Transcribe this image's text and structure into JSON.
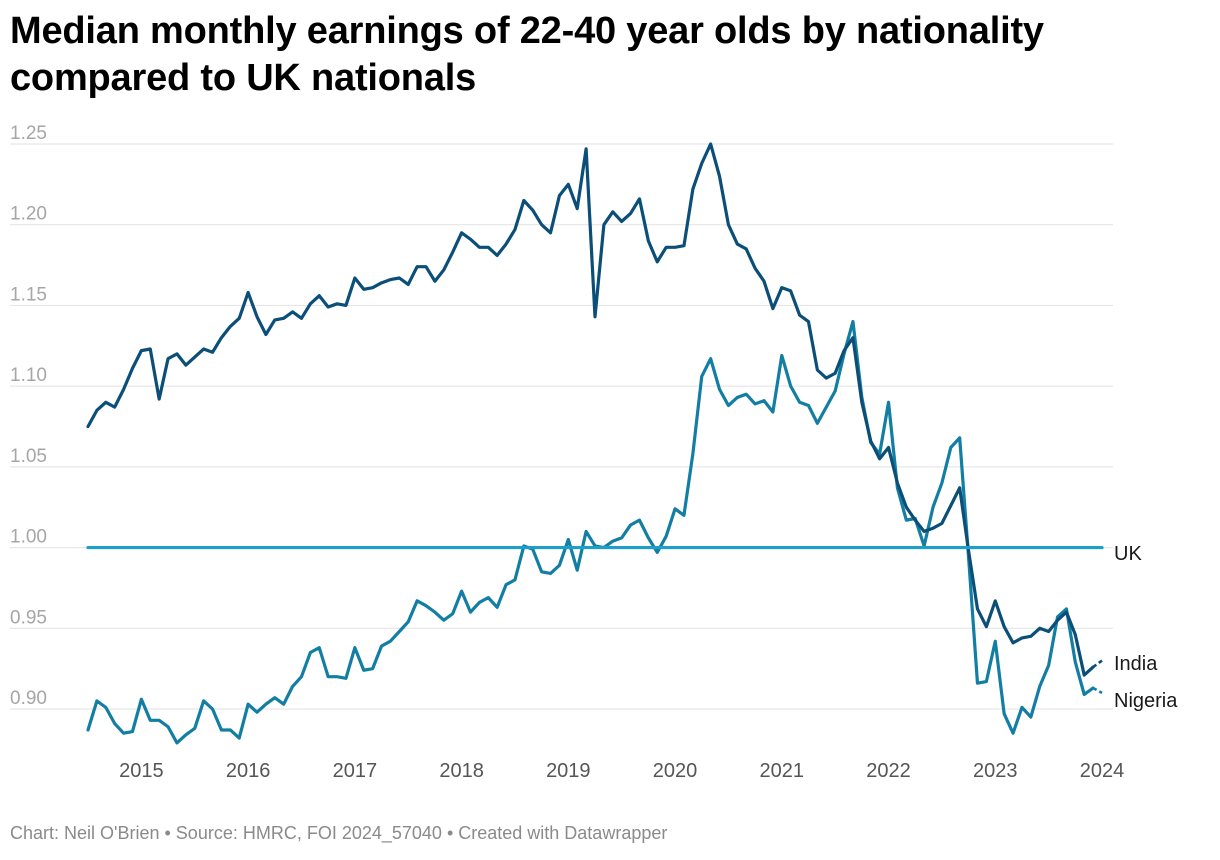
{
  "title": "Median monthly earnings of 22-40 year olds by nationality compared to UK nationals",
  "footer": {
    "chart_by": "Chart: Neil O'Brien",
    "source": "Source: HMRC, FOI 2024_57040",
    "created_with": "Created with Datawrapper",
    "separator": "•"
  },
  "colors": {
    "india": "#0b4f79",
    "nigeria": "#137ea3",
    "uk": "#1d9fcc",
    "grid": "#e2e2e2"
  },
  "chart_data": {
    "type": "line",
    "title": "Median monthly earnings of 22-40 year olds by nationality compared to UK nationals",
    "xlabel": "",
    "ylabel": "",
    "x_ticks": [
      "2015",
      "2016",
      "2017",
      "2018",
      "2019",
      "2020",
      "2021",
      "2022",
      "2023",
      "2024"
    ],
    "y_ticks": [
      "0.90",
      "0.95",
      "1.00",
      "1.05",
      "1.10",
      "1.15",
      "1.20",
      "1.25"
    ],
    "ylim": [
      0.88,
      1.25
    ],
    "grid": true,
    "legend": "direct labels at line ends",
    "series": [
      {
        "name": "India",
        "color": "#0b4f79",
        "points": [
          [
            "2014-07",
            1.075
          ],
          [
            "2014-08",
            1.085
          ],
          [
            "2014-09",
            1.09
          ],
          [
            "2014-10",
            1.087
          ],
          [
            "2014-11",
            1.098
          ],
          [
            "2014-12",
            1.111
          ],
          [
            "2015-01",
            1.122
          ],
          [
            "2015-02",
            1.123
          ],
          [
            "2015-03",
            1.092
          ],
          [
            "2015-04",
            1.117
          ],
          [
            "2015-05",
            1.12
          ],
          [
            "2015-06",
            1.113
          ],
          [
            "2015-07",
            1.118
          ],
          [
            "2015-08",
            1.123
          ],
          [
            "2015-09",
            1.121
          ],
          [
            "2015-10",
            1.13
          ],
          [
            "2015-11",
            1.137
          ],
          [
            "2015-12",
            1.142
          ],
          [
            "2016-01",
            1.158
          ],
          [
            "2016-02",
            1.143
          ],
          [
            "2016-03",
            1.132
          ],
          [
            "2016-04",
            1.141
          ],
          [
            "2016-05",
            1.142
          ],
          [
            "2016-06",
            1.146
          ],
          [
            "2016-07",
            1.142
          ],
          [
            "2016-08",
            1.151
          ],
          [
            "2016-09",
            1.156
          ],
          [
            "2016-10",
            1.149
          ],
          [
            "2016-11",
            1.151
          ],
          [
            "2016-12",
            1.15
          ],
          [
            "2017-01",
            1.167
          ],
          [
            "2017-02",
            1.16
          ],
          [
            "2017-03",
            1.161
          ],
          [
            "2017-04",
            1.164
          ],
          [
            "2017-05",
            1.166
          ],
          [
            "2017-06",
            1.167
          ],
          [
            "2017-07",
            1.163
          ],
          [
            "2017-08",
            1.174
          ],
          [
            "2017-09",
            1.174
          ],
          [
            "2017-10",
            1.165
          ],
          [
            "2017-11",
            1.172
          ],
          [
            "2017-12",
            1.183
          ],
          [
            "2018-01",
            1.195
          ],
          [
            "2018-02",
            1.191
          ],
          [
            "2018-03",
            1.186
          ],
          [
            "2018-04",
            1.186
          ],
          [
            "2018-05",
            1.181
          ],
          [
            "2018-06",
            1.188
          ],
          [
            "2018-07",
            1.197
          ],
          [
            "2018-08",
            1.215
          ],
          [
            "2018-09",
            1.209
          ],
          [
            "2018-10",
            1.2
          ],
          [
            "2018-11",
            1.195
          ],
          [
            "2018-12",
            1.218
          ],
          [
            "2019-01",
            1.225
          ],
          [
            "2019-02",
            1.21
          ],
          [
            "2019-03",
            1.247
          ],
          [
            "2019-04",
            1.143
          ],
          [
            "2019-05",
            1.2
          ],
          [
            "2019-06",
            1.208
          ],
          [
            "2019-07",
            1.202
          ],
          [
            "2019-08",
            1.207
          ],
          [
            "2019-09",
            1.216
          ],
          [
            "2019-10",
            1.19
          ],
          [
            "2019-11",
            1.177
          ],
          [
            "2019-12",
            1.186
          ],
          [
            "2020-01",
            1.186
          ],
          [
            "2020-02",
            1.187
          ],
          [
            "2020-03",
            1.222
          ],
          [
            "2020-04",
            1.238
          ],
          [
            "2020-05",
            1.25
          ],
          [
            "2020-06",
            1.23
          ],
          [
            "2020-07",
            1.2
          ],
          [
            "2020-08",
            1.188
          ],
          [
            "2020-09",
            1.185
          ],
          [
            "2020-10",
            1.173
          ],
          [
            "2020-11",
            1.165
          ],
          [
            "2020-12",
            1.148
          ],
          [
            "2021-01",
            1.161
          ],
          [
            "2021-02",
            1.159
          ],
          [
            "2021-03",
            1.144
          ],
          [
            "2021-04",
            1.14
          ],
          [
            "2021-05",
            1.11
          ],
          [
            "2021-06",
            1.105
          ],
          [
            "2021-07",
            1.108
          ],
          [
            "2021-08",
            1.122
          ],
          [
            "2021-09",
            1.13
          ],
          [
            "2021-10",
            1.09
          ],
          [
            "2021-11",
            1.066
          ],
          [
            "2021-12",
            1.055
          ],
          [
            "2022-01",
            1.062
          ],
          [
            "2022-02",
            1.04
          ],
          [
            "2022-03",
            1.025
          ],
          [
            "2022-04",
            1.017
          ],
          [
            "2022-05",
            1.01
          ],
          [
            "2022-06",
            1.012
          ],
          [
            "2022-07",
            1.015
          ],
          [
            "2022-08",
            1.026
          ],
          [
            "2022-09",
            1.037
          ],
          [
            "2022-10",
            0.998
          ],
          [
            "2022-11",
            0.962
          ],
          [
            "2022-12",
            0.951
          ],
          [
            "2023-01",
            0.967
          ],
          [
            "2023-02",
            0.951
          ],
          [
            "2023-03",
            0.941
          ],
          [
            "2023-04",
            0.944
          ],
          [
            "2023-05",
            0.945
          ],
          [
            "2023-06",
            0.95
          ],
          [
            "2023-07",
            0.948
          ],
          [
            "2023-08",
            0.955
          ],
          [
            "2023-09",
            0.96
          ],
          [
            "2023-10",
            0.946
          ],
          [
            "2023-11",
            0.921
          ],
          [
            "2023-12",
            0.926
          ],
          [
            "2024-01",
            0.93
          ]
        ]
      },
      {
        "name": "Nigeria",
        "color": "#137ea3",
        "points": [
          [
            "2014-07",
            0.887
          ],
          [
            "2014-08",
            0.905
          ],
          [
            "2014-09",
            0.901
          ],
          [
            "2014-10",
            0.891
          ],
          [
            "2014-11",
            0.885
          ],
          [
            "2014-12",
            0.886
          ],
          [
            "2015-01",
            0.906
          ],
          [
            "2015-02",
            0.893
          ],
          [
            "2015-03",
            0.893
          ],
          [
            "2015-04",
            0.889
          ],
          [
            "2015-05",
            0.879
          ],
          [
            "2015-06",
            0.884
          ],
          [
            "2015-07",
            0.888
          ],
          [
            "2015-08",
            0.905
          ],
          [
            "2015-09",
            0.9
          ],
          [
            "2015-10",
            0.887
          ],
          [
            "2015-11",
            0.887
          ],
          [
            "2015-12",
            0.882
          ],
          [
            "2016-01",
            0.903
          ],
          [
            "2016-02",
            0.898
          ],
          [
            "2016-03",
            0.903
          ],
          [
            "2016-04",
            0.907
          ],
          [
            "2016-05",
            0.903
          ],
          [
            "2016-06",
            0.914
          ],
          [
            "2016-07",
            0.92
          ],
          [
            "2016-08",
            0.935
          ],
          [
            "2016-09",
            0.938
          ],
          [
            "2016-10",
            0.92
          ],
          [
            "2016-11",
            0.92
          ],
          [
            "2016-12",
            0.919
          ],
          [
            "2017-01",
            0.938
          ],
          [
            "2017-02",
            0.924
          ],
          [
            "2017-03",
            0.925
          ],
          [
            "2017-04",
            0.939
          ],
          [
            "2017-05",
            0.942
          ],
          [
            "2017-06",
            0.948
          ],
          [
            "2017-07",
            0.954
          ],
          [
            "2017-08",
            0.967
          ],
          [
            "2017-09",
            0.964
          ],
          [
            "2017-10",
            0.96
          ],
          [
            "2017-11",
            0.955
          ],
          [
            "2017-12",
            0.959
          ],
          [
            "2018-01",
            0.973
          ],
          [
            "2018-02",
            0.96
          ],
          [
            "2018-03",
            0.966
          ],
          [
            "2018-04",
            0.969
          ],
          [
            "2018-05",
            0.963
          ],
          [
            "2018-06",
            0.977
          ],
          [
            "2018-07",
            0.98
          ],
          [
            "2018-08",
            1.001
          ],
          [
            "2018-09",
            0.999
          ],
          [
            "2018-10",
            0.985
          ],
          [
            "2018-11",
            0.984
          ],
          [
            "2018-12",
            0.989
          ],
          [
            "2019-01",
            1.005
          ],
          [
            "2019-02",
            0.986
          ],
          [
            "2019-03",
            1.01
          ],
          [
            "2019-04",
            1.001
          ],
          [
            "2019-05",
            1.0
          ],
          [
            "2019-06",
            1.004
          ],
          [
            "2019-07",
            1.006
          ],
          [
            "2019-08",
            1.014
          ],
          [
            "2019-09",
            1.017
          ],
          [
            "2019-10",
            1.006
          ],
          [
            "2019-11",
            0.997
          ],
          [
            "2019-12",
            1.007
          ],
          [
            "2020-01",
            1.024
          ],
          [
            "2020-02",
            1.02
          ],
          [
            "2020-03",
            1.058
          ],
          [
            "2020-04",
            1.106
          ],
          [
            "2020-05",
            1.117
          ],
          [
            "2020-06",
            1.098
          ],
          [
            "2020-07",
            1.088
          ],
          [
            "2020-08",
            1.093
          ],
          [
            "2020-09",
            1.095
          ],
          [
            "2020-10",
            1.089
          ],
          [
            "2020-11",
            1.091
          ],
          [
            "2020-12",
            1.084
          ],
          [
            "2021-01",
            1.119
          ],
          [
            "2021-02",
            1.1
          ],
          [
            "2021-03",
            1.09
          ],
          [
            "2021-04",
            1.088
          ],
          [
            "2021-05",
            1.077
          ],
          [
            "2021-06",
            1.087
          ],
          [
            "2021-07",
            1.097
          ],
          [
            "2021-08",
            1.12
          ],
          [
            "2021-09",
            1.14
          ],
          [
            "2021-10",
            1.093
          ],
          [
            "2021-11",
            1.065
          ],
          [
            "2021-12",
            1.058
          ],
          [
            "2022-01",
            1.09
          ],
          [
            "2022-02",
            1.037
          ],
          [
            "2022-03",
            1.017
          ],
          [
            "2022-04",
            1.018
          ],
          [
            "2022-05",
            1.001
          ],
          [
            "2022-06",
            1.025
          ],
          [
            "2022-07",
            1.04
          ],
          [
            "2022-08",
            1.062
          ],
          [
            "2022-09",
            1.068
          ],
          [
            "2022-10",
            0.994
          ],
          [
            "2022-11",
            0.916
          ],
          [
            "2022-12",
            0.917
          ],
          [
            "2023-01",
            0.942
          ],
          [
            "2023-02",
            0.897
          ],
          [
            "2023-03",
            0.885
          ],
          [
            "2023-04",
            0.901
          ],
          [
            "2023-05",
            0.895
          ],
          [
            "2023-06",
            0.914
          ],
          [
            "2023-07",
            0.927
          ],
          [
            "2023-08",
            0.957
          ],
          [
            "2023-09",
            0.962
          ],
          [
            "2023-10",
            0.929
          ],
          [
            "2023-11",
            0.909
          ],
          [
            "2023-12",
            0.913
          ],
          [
            "2024-01",
            0.91
          ]
        ]
      },
      {
        "name": "UK",
        "color": "#1d9fcc",
        "points": [
          [
            "2014-07",
            1.0
          ],
          [
            "2024-01",
            1.0
          ]
        ]
      }
    ]
  }
}
